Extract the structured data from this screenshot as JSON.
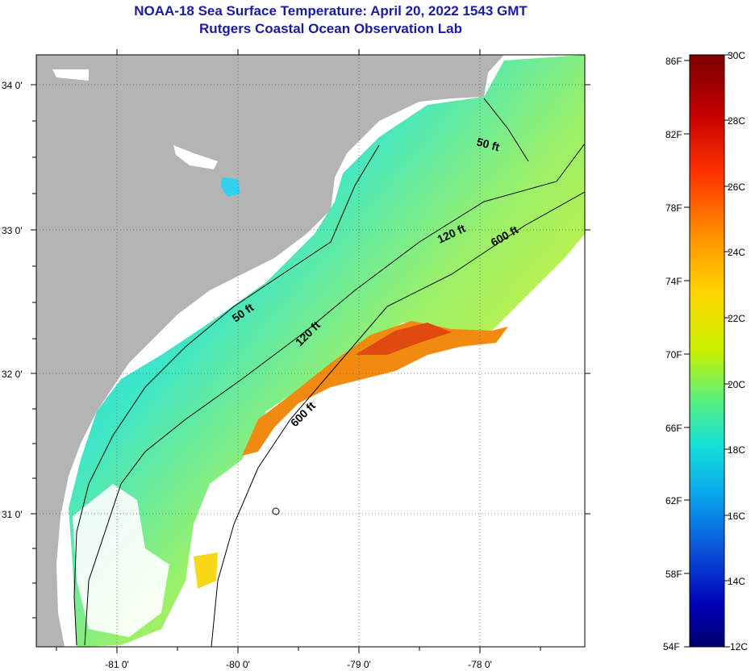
{
  "title": {
    "line1": "NOAA-18 Sea Surface Temperature:  April 20, 2022 1543 GMT",
    "line2": "Rutgers Coastal Ocean Observation Lab"
  },
  "map": {
    "lat_labels": [
      "34 0'",
      "33 0'",
      "32 0'",
      "31 0'"
    ],
    "lon_labels": [
      "-81 0'",
      "-80 0'",
      "-79 0'",
      "-78 0'"
    ],
    "contour_labels": [
      "50 ft",
      "120 ft",
      "600 ft",
      "50 ft",
      "120 ft",
      "600 ft"
    ]
  },
  "colorbar": {
    "fahrenheit_labels": [
      "86F",
      "82F",
      "78F",
      "74F",
      "70F",
      "66F",
      "62F",
      "58F",
      "54F"
    ],
    "celsius_labels": [
      "30C",
      "28C",
      "26C",
      "24C",
      "22C",
      "20C",
      "18C",
      "16C",
      "14C",
      "12C"
    ],
    "colors": [
      "#7a0000",
      "#c40000",
      "#ff3300",
      "#ff8c00",
      "#ffd400",
      "#c8f000",
      "#5cf07a",
      "#13e0d8",
      "#0ba8ee",
      "#0a4fd8",
      "#0000b8",
      "#00006e"
    ]
  }
}
